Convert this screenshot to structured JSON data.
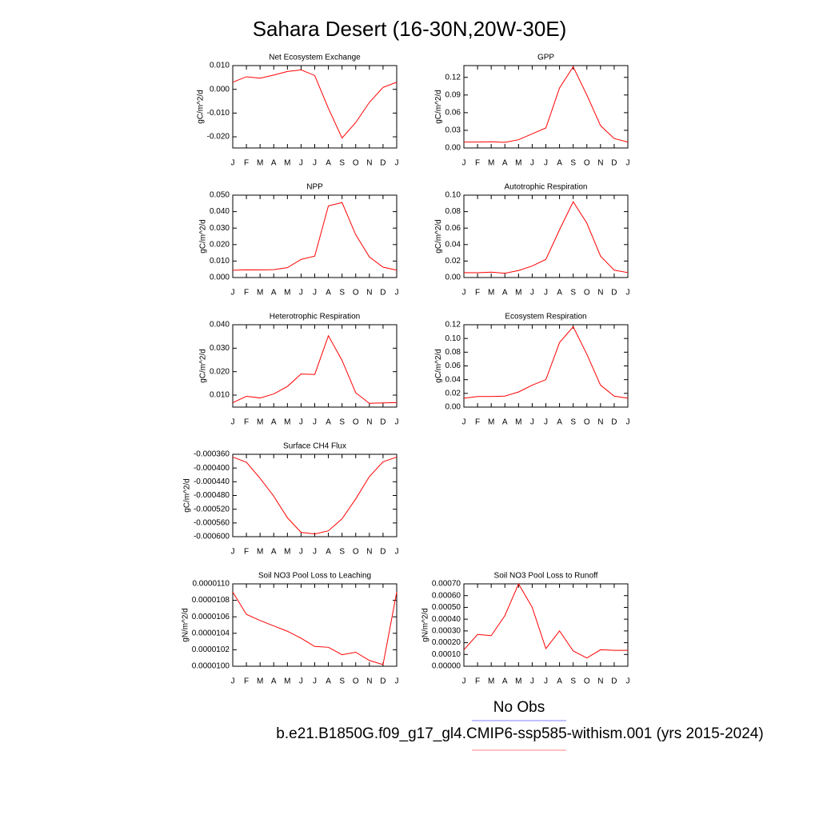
{
  "title": "Sahara Desert (16-30N,20W-30E)",
  "legend": [
    {
      "name": "No Obs",
      "color": "#8080ff"
    },
    {
      "name": "b.e21.B1850G.f09_g17_gl4.CMIP6-ssp585-withism.001 (yrs 2015-2024)",
      "color": "#ff8080"
    }
  ],
  "chart_data": [
    {
      "type": "line",
      "title": "Net Ecosystem Exchange",
      "y_label": "gC/m^2/d",
      "color": "#ff0000",
      "categories": [
        "J",
        "F",
        "M",
        "A",
        "M",
        "J",
        "J",
        "A",
        "S",
        "O",
        "N",
        "D",
        "J"
      ],
      "values": [
        0.003,
        0.0053,
        0.0047,
        0.006,
        0.0075,
        0.0082,
        0.0058,
        -0.008,
        -0.0205,
        -0.014,
        -0.0055,
        0.0008,
        0.003
      ],
      "ylim": [
        -0.0247,
        0.01
      ],
      "yticks": [
        {
          "value": 0.01,
          "label": "0.010"
        },
        {
          "value": 0,
          "label": "0.000"
        },
        {
          "value": -0.01,
          "label": "-0.010"
        },
        {
          "value": -0.02,
          "label": "-0.020"
        }
      ]
    },
    {
      "type": "line",
      "title": "GPP",
      "y_label": "gC/m^2/d",
      "color": "#ff0000",
      "categories": [
        "J",
        "F",
        "M",
        "A",
        "M",
        "J",
        "J",
        "A",
        "S",
        "O",
        "N",
        "D",
        "J"
      ],
      "values": [
        0.01,
        0.01,
        0.0105,
        0.0095,
        0.014,
        0.024,
        0.034,
        0.102,
        0.138,
        0.09,
        0.038,
        0.016,
        0.01
      ],
      "ylim": [
        0,
        0.14
      ],
      "yticks": [
        {
          "value": 0,
          "label": "0.00"
        },
        {
          "value": 0.03,
          "label": "0.03"
        },
        {
          "value": 0.06,
          "label": "0.06"
        },
        {
          "value": 0.09,
          "label": "0.09"
        },
        {
          "value": 0.12,
          "label": "0.12"
        }
      ]
    },
    {
      "type": "line",
      "title": "NPP",
      "y_label": "gC/m^2/d",
      "color": "#ff0000",
      "categories": [
        "J",
        "F",
        "M",
        "A",
        "M",
        "J",
        "J",
        "A",
        "S",
        "O",
        "N",
        "D",
        "J"
      ],
      "values": [
        0.0044,
        0.0047,
        0.0046,
        0.0048,
        0.006,
        0.011,
        0.013,
        0.0435,
        0.0455,
        0.026,
        0.0125,
        0.0063,
        0.0045
      ],
      "ylim": [
        0,
        0.05
      ],
      "yticks": [
        {
          "value": 0,
          "label": "0.000"
        },
        {
          "value": 0.01,
          "label": "0.010"
        },
        {
          "value": 0.02,
          "label": "0.020"
        },
        {
          "value": 0.03,
          "label": "0.030"
        },
        {
          "value": 0.04,
          "label": "0.040"
        },
        {
          "value": 0.05,
          "label": "0.050"
        }
      ]
    },
    {
      "type": "line",
      "title": "Autotrophic Respiration",
      "y_label": "gC/m^2/d",
      "color": "#ff0000",
      "categories": [
        "J",
        "F",
        "M",
        "A",
        "M",
        "J",
        "J",
        "A",
        "S",
        "O",
        "N",
        "D",
        "J"
      ],
      "values": [
        0.006,
        0.0058,
        0.0065,
        0.0052,
        0.0085,
        0.014,
        0.022,
        0.058,
        0.092,
        0.066,
        0.026,
        0.009,
        0.006
      ],
      "ylim": [
        0,
        0.1
      ],
      "yticks": [
        {
          "value": 0,
          "label": "0.00"
        },
        {
          "value": 0.02,
          "label": "0.02"
        },
        {
          "value": 0.04,
          "label": "0.04"
        },
        {
          "value": 0.06,
          "label": "0.06"
        },
        {
          "value": 0.08,
          "label": "0.08"
        },
        {
          "value": 0.1,
          "label": "0.10"
        }
      ]
    },
    {
      "type": "line",
      "title": "Heterotrophic Respiration",
      "y_label": "gC/m^2/d",
      "color": "#ff0000",
      "categories": [
        "J",
        "F",
        "M",
        "A",
        "M",
        "J",
        "J",
        "A",
        "S",
        "O",
        "N",
        "D",
        "J"
      ],
      "values": [
        0.0068,
        0.0095,
        0.0088,
        0.0105,
        0.0137,
        0.019,
        0.0188,
        0.0353,
        0.0248,
        0.011,
        0.0065,
        0.0067,
        0.0068
      ],
      "ylim": [
        0.0049,
        0.04
      ],
      "yticks": [
        {
          "value": 0.01,
          "label": "0.010"
        },
        {
          "value": 0.02,
          "label": "0.020"
        },
        {
          "value": 0.03,
          "label": "0.030"
        },
        {
          "value": 0.04,
          "label": "0.040"
        }
      ]
    },
    {
      "type": "line",
      "title": "Ecosystem Respiration",
      "y_label": "gC/m^2/d",
      "color": "#ff0000",
      "categories": [
        "J",
        "F",
        "M",
        "A",
        "M",
        "J",
        "J",
        "A",
        "S",
        "O",
        "N",
        "D",
        "J"
      ],
      "values": [
        0.013,
        0.0155,
        0.0155,
        0.016,
        0.022,
        0.032,
        0.04,
        0.094,
        0.117,
        0.077,
        0.032,
        0.016,
        0.013
      ],
      "ylim": [
        0,
        0.12
      ],
      "yticks": [
        {
          "value": 0,
          "label": "0.00"
        },
        {
          "value": 0.02,
          "label": "0.02"
        },
        {
          "value": 0.04,
          "label": "0.04"
        },
        {
          "value": 0.06,
          "label": "0.06"
        },
        {
          "value": 0.08,
          "label": "0.08"
        },
        {
          "value": 0.1,
          "label": "0.10"
        },
        {
          "value": 0.12,
          "label": "0.12"
        }
      ]
    },
    {
      "type": "line",
      "title": "Surface CH4 Flux",
      "y_label": "gC/m^2/d",
      "color": "#ff0000",
      "categories": [
        "J",
        "F",
        "M",
        "A",
        "M",
        "J",
        "J",
        "A",
        "S",
        "O",
        "N",
        "D",
        "J"
      ],
      "values": [
        -0.000368,
        -0.000383,
        -0.00043,
        -0.000482,
        -0.000545,
        -0.0005875,
        -0.000592,
        -0.000583,
        -0.000548,
        -0.00049,
        -0.000425,
        -0.000382,
        -0.000368
      ],
      "ylim": [
        -0.0006,
        -0.00036
      ],
      "yticks": [
        {
          "value": -0.00036,
          "label": "-0.000360"
        },
        {
          "value": -0.0004,
          "label": "-0.000400"
        },
        {
          "value": -0.00044,
          "label": "-0.000440"
        },
        {
          "value": -0.00048,
          "label": "-0.000480"
        },
        {
          "value": -0.00052,
          "label": "-0.000520"
        },
        {
          "value": -0.00056,
          "label": "-0.000560"
        },
        {
          "value": -0.0006,
          "label": "-0.000600"
        }
      ]
    },
    {
      "type": "line",
      "title": "Soil NO3 Pool Loss to Leaching",
      "y_label": "gN/m^2/d",
      "color": "#ff0000",
      "categories": [
        "J",
        "F",
        "M",
        "A",
        "M",
        "J",
        "J",
        "A",
        "S",
        "O",
        "N",
        "D",
        "J"
      ],
      "values": [
        1.09e-05,
        1.063e-05,
        1.0555e-05,
        1.049e-05,
        1.0425e-05,
        1.034e-05,
        1.024e-05,
        1.023e-05,
        1.014e-05,
        1.017e-05,
        1.007e-05,
        1.002e-05,
        1.09e-05
      ],
      "ylim": [
        1e-05,
        1.1e-05
      ],
      "yticks": [
        {
          "value": 1e-05,
          "label": "0.0000100"
        },
        {
          "value": 1.02e-05,
          "label": "0.0000102"
        },
        {
          "value": 1.04e-05,
          "label": "0.0000104"
        },
        {
          "value": 1.06e-05,
          "label": "0.0000106"
        },
        {
          "value": 1.08e-05,
          "label": "0.0000108"
        },
        {
          "value": 1.1e-05,
          "label": "0.0000110"
        }
      ]
    },
    {
      "type": "line",
      "title": "Soil NO3 Pool Loss to Runoff",
      "y_label": "gN/m^2/d",
      "color": "#ff0000",
      "categories": [
        "J",
        "F",
        "M",
        "A",
        "M",
        "J",
        "J",
        "A",
        "S",
        "O",
        "N",
        "D",
        "J"
      ],
      "values": [
        0.00014,
        0.00027,
        0.00026,
        0.00043,
        0.0007,
        0.0005,
        0.00015,
        0.0003,
        0.00013,
        7e-05,
        0.00014,
        0.000135,
        0.000135
      ],
      "ylim": [
        0,
        0.0007
      ],
      "yticks": [
        {
          "value": 0,
          "label": "0.00000"
        },
        {
          "value": 0.0001,
          "label": "0.00010"
        },
        {
          "value": 0.0002,
          "label": "0.00020"
        },
        {
          "value": 0.0003,
          "label": "0.00030"
        },
        {
          "value": 0.0004,
          "label": "0.00040"
        },
        {
          "value": 0.0005,
          "label": "0.00050"
        },
        {
          "value": 0.0006,
          "label": "0.00060"
        },
        {
          "value": 0.0007,
          "label": "0.00070"
        }
      ]
    }
  ]
}
